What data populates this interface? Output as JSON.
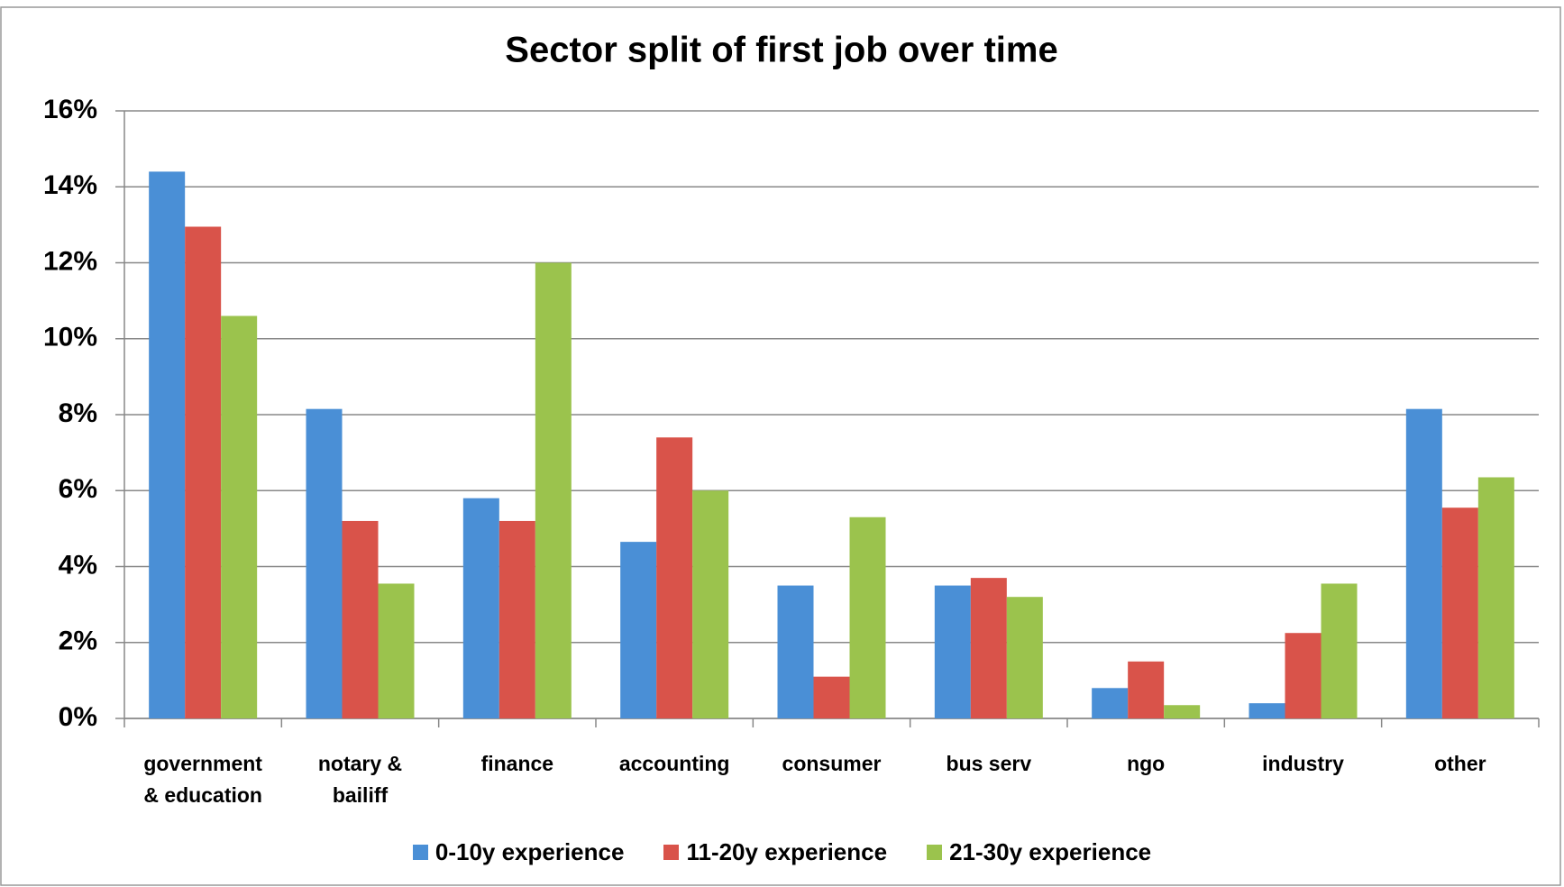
{
  "chart_data": {
    "type": "bar",
    "title": "Sector split of first job over time",
    "categories": [
      "government & education",
      "notary & bailiff",
      "finance",
      "accounting",
      "consumer",
      "bus serv",
      "ngo",
      "industry",
      "other"
    ],
    "series": [
      {
        "name": "0-10y experience",
        "color": "#4a8fd6",
        "values": [
          14.4,
          8.15,
          5.8,
          4.65,
          3.5,
          3.5,
          0.8,
          0.4,
          8.15
        ]
      },
      {
        "name": "11-20y experience",
        "color": "#d9534a",
        "values": [
          12.95,
          5.2,
          5.2,
          7.4,
          1.1,
          3.7,
          1.5,
          2.25,
          5.55
        ]
      },
      {
        "name": "21-30y experience",
        "color": "#9bc34d",
        "values": [
          10.6,
          3.55,
          12.0,
          6.0,
          5.3,
          3.2,
          0.35,
          3.55,
          6.35
        ]
      }
    ],
    "ylim": [
      0,
      16
    ],
    "yticks": [
      {
        "value": 0,
        "label": "0%"
      },
      {
        "value": 2,
        "label": "2%"
      },
      {
        "value": 4,
        "label": "4%"
      },
      {
        "value": 6,
        "label": "6%"
      },
      {
        "value": 8,
        "label": "8%"
      },
      {
        "value": 10,
        "label": "10%"
      },
      {
        "value": 12,
        "label": "12%"
      },
      {
        "value": 14,
        "label": "14%"
      },
      {
        "value": 16,
        "label": "16%"
      }
    ],
    "grid": true,
    "legend": "bottom"
  }
}
